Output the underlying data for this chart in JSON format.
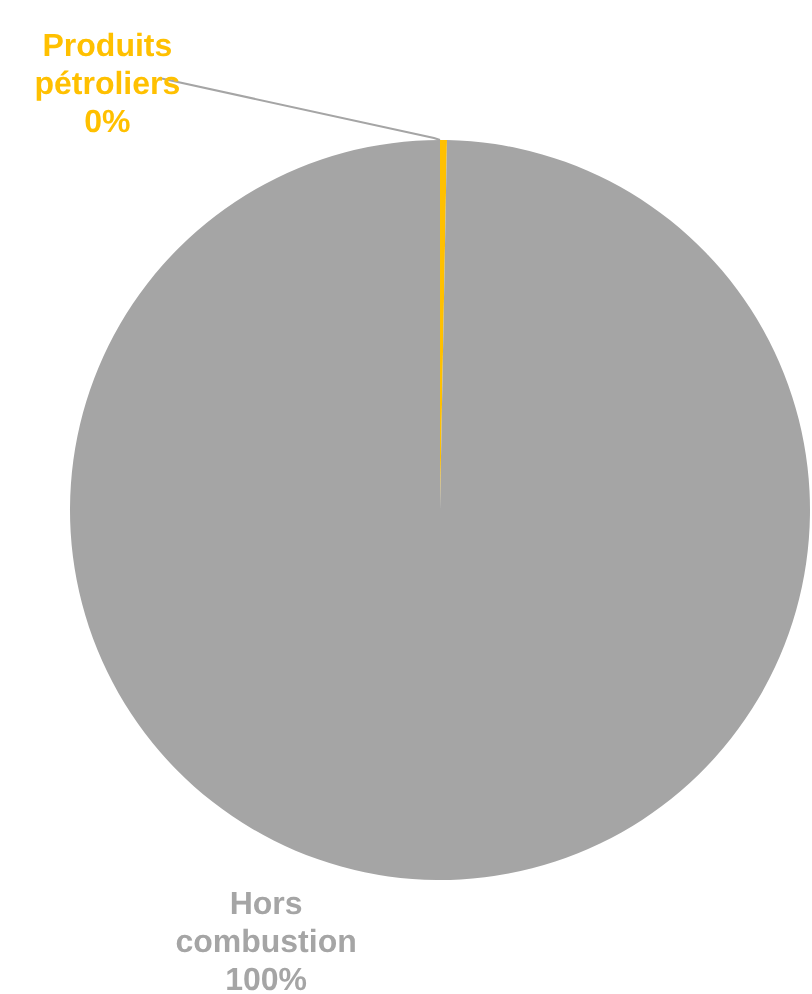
{
  "chart_data": {
    "type": "pie",
    "categories": [
      "Produits pétroliers",
      "Hors combustion"
    ],
    "values": [
      0.3,
      99.7
    ],
    "value_labels": [
      "0%",
      "100%"
    ],
    "colors": [
      "#ffc000",
      "#a5a5a5"
    ]
  }
}
